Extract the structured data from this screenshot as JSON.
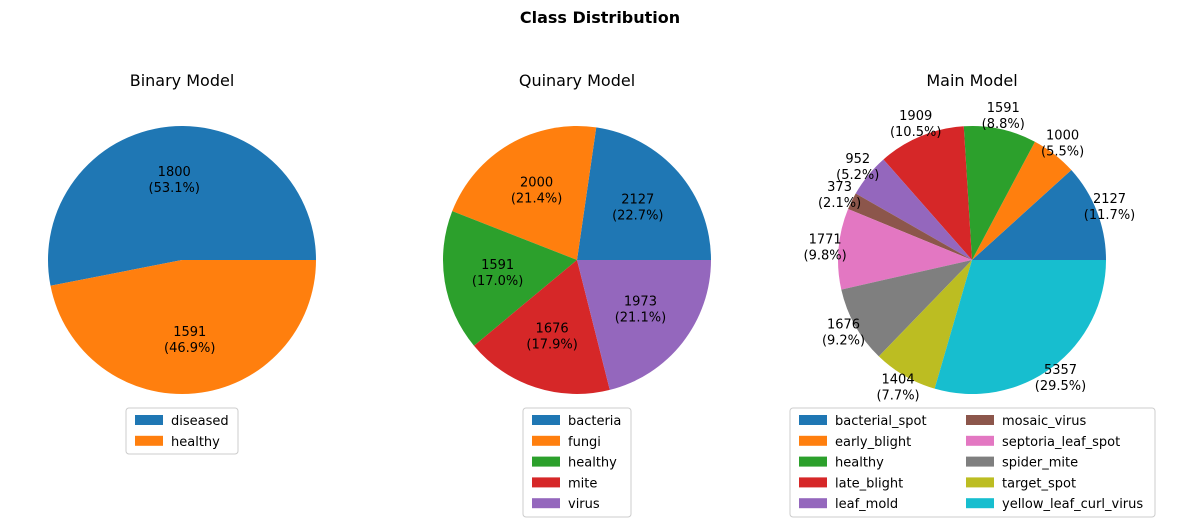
{
  "figure": {
    "suptitle": "Class Distribution"
  },
  "chart_data": [
    {
      "type": "pie",
      "title": "Binary Model",
      "labels": [
        "diseased",
        "healthy"
      ],
      "values": [
        1800,
        1591
      ],
      "pct_labels": [
        "1800\n(53.1%)",
        "1591\n(46.9%)"
      ],
      "colors": [
        "#1f77b4",
        "#ff7f0e"
      ],
      "legend": "bottom",
      "legend_columns": 1
    },
    {
      "type": "pie",
      "title": "Quinary Model",
      "labels": [
        "bacteria",
        "fungi",
        "healthy",
        "mite",
        "virus"
      ],
      "values": [
        2127,
        2000,
        1591,
        1676,
        1973
      ],
      "pct_labels": [
        "2127\n(22.7%)",
        "2000\n(21.4%)",
        "1591\n(17.0%)",
        "1676\n(17.9%)",
        "1973\n(21.1%)"
      ],
      "colors": [
        "#1f77b4",
        "#ff7f0e",
        "#2ca02c",
        "#d62728",
        "#9467bd"
      ],
      "legend": "bottom",
      "legend_columns": 1
    },
    {
      "type": "pie",
      "title": "Main Model",
      "labels": [
        "bacterial_spot",
        "early_blight",
        "healthy",
        "late_blight",
        "leaf_mold",
        "mosaic_virus",
        "septoria_leaf_spot",
        "spider_mite",
        "target_spot",
        "yellow_leaf_curl_virus"
      ],
      "values": [
        2127,
        1000,
        1591,
        1909,
        952,
        373,
        1771,
        1676,
        1404,
        5357
      ],
      "pct_labels": [
        "2127\n(11.7%)",
        "1000\n(5.5%)",
        "1591\n(8.8%)",
        "1909\n(10.5%)",
        "952\n(5.2%)",
        "373\n(2.1%)",
        "1771\n(9.8%)",
        "1676\n(9.2%)",
        "1404\n(7.7%)",
        "5357\n(29.5%)"
      ],
      "colors": [
        "#1f77b4",
        "#ff7f0e",
        "#2ca02c",
        "#d62728",
        "#9467bd",
        "#8c564b",
        "#e377c2",
        "#7f7f7f",
        "#bcbd22",
        "#17becf"
      ],
      "legend": "bottom",
      "legend_columns": 2
    }
  ]
}
